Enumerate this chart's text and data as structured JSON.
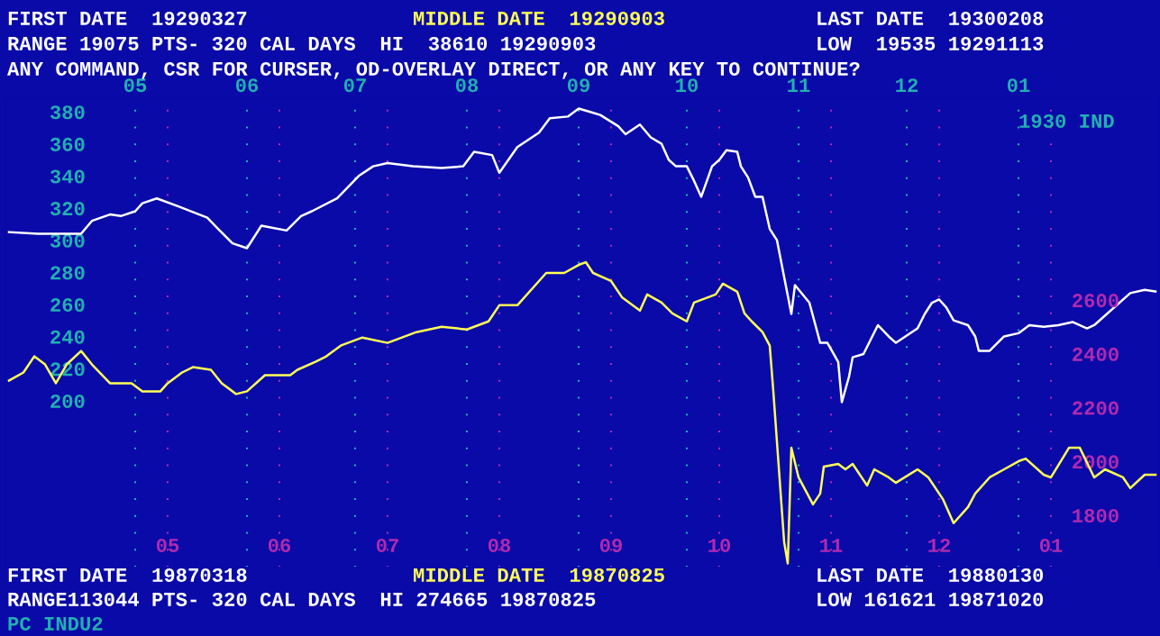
{
  "chart_data": {
    "type": "line",
    "annotations": [
      "FIRST DATE  19290327",
      "MIDDLE DATE  19290903",
      "LAST DATE  19300208",
      "RANGE 19075 PTS- 320 CAL DAYS  HI  38610 19290903",
      "LOW  19535 19291113",
      "ANY COMMAND, CSR FOR CURSER, OD-OVERLAY DIRECT, OR ANY KEY TO CONTINUE?",
      "1930 IND",
      "FIRST DATE  19870318",
      "MIDDLE DATE  19870825",
      "LAST DATE  19880130",
      "RANGE113044 PTS- 320 CAL DAYS  HI 274665 19870825",
      "LOW 161621 19871020",
      "PC INDU2"
    ],
    "xlim": [
      "1987-03-17",
      "1988-01-31"
    ],
    "xticks": [
      {
        "value": "1987-05-01",
        "label": "05"
      },
      {
        "value": "1987-06-01",
        "label": "06"
      },
      {
        "value": "1987-07-01",
        "label": "07"
      },
      {
        "value": "1987-08-01",
        "label": "08"
      },
      {
        "value": "1987-09-01",
        "label": "09"
      },
      {
        "value": "1987-10-01",
        "label": "10"
      },
      {
        "value": "1987-11-01",
        "label": "11"
      },
      {
        "value": "1987-12-01",
        "label": "12"
      },
      {
        "value": "1988-01-01",
        "label": "01"
      }
    ],
    "x2lim": [
      "1929-03-26",
      "1930-02-09"
    ],
    "x2ticks": [
      {
        "value": "1929-05-01",
        "label": "05"
      },
      {
        "value": "1929-06-01",
        "label": "06"
      },
      {
        "value": "1929-07-01",
        "label": "07"
      },
      {
        "value": "1929-08-01",
        "label": "08"
      },
      {
        "value": "1929-09-01",
        "label": "09"
      },
      {
        "value": "1929-10-01",
        "label": "10"
      },
      {
        "value": "1929-11-01",
        "label": "11"
      },
      {
        "value": "1929-12-01",
        "label": "12"
      },
      {
        "value": "1930-01-01",
        "label": "01"
      }
    ],
    "ylim": [
      96,
      389
    ],
    "yticks": [
      200,
      220,
      240,
      260,
      280,
      300,
      320,
      340,
      360,
      380
    ],
    "y2lim": [
      1605,
      3353
    ],
    "y2ticks": [
      1800,
      2000,
      2200,
      2400,
      2600
    ],
    "grid": "x",
    "marker": "none",
    "line_style": "solid",
    "series": [
      {
        "axis": "x2",
        "color": "#ffffff",
        "x": [
          "1929-03-27",
          "1929-04-04",
          "1929-04-11",
          "1929-04-16",
          "1929-04-19",
          "1929-04-24",
          "1929-04-27",
          "1929-05-01",
          "1929-05-03",
          "1929-05-07",
          "1929-05-13",
          "1929-05-21",
          "1929-05-24",
          "1929-05-28",
          "1929-06-01",
          "1929-06-05",
          "1929-06-12",
          "1929-06-16",
          "1929-06-19",
          "1929-06-26",
          "1929-07-02",
          "1929-07-06",
          "1929-07-10",
          "1929-07-17",
          "1929-07-25",
          "1929-07-31",
          "1929-08-03",
          "1929-08-08",
          "1929-08-10",
          "1929-08-15",
          "1929-08-21",
          "1929-08-24",
          "1929-08-29",
          "1929-09-01",
          "1929-09-04",
          "1929-09-07",
          "1929-09-12",
          "1929-09-14",
          "1929-09-18",
          "1929-09-21",
          "1929-09-24",
          "1929-09-26",
          "1929-09-28",
          "1929-10-01",
          "1929-10-03",
          "1929-10-05",
          "1929-10-08",
          "1929-10-10",
          "1929-10-12",
          "1929-10-15",
          "1929-10-16",
          "1929-10-18",
          "1929-10-20",
          "1929-10-22",
          "1929-10-24",
          "1929-10-26",
          "1929-10-28",
          "1929-10-30",
          "1929-10-31",
          "1929-11-04",
          "1929-11-07",
          "1929-11-09",
          "1929-11-12",
          "1929-11-13",
          "1929-11-15",
          "1929-11-16",
          "1929-11-19",
          "1929-11-21",
          "1929-11-23",
          "1929-11-26",
          "1929-11-28",
          "1929-12-04",
          "1929-12-06",
          "1929-12-08",
          "1929-12-10",
          "1929-12-12",
          "1929-12-14",
          "1929-12-18",
          "1929-12-20",
          "1929-12-21",
          "1929-12-24",
          "1929-12-28",
          "1930-01-01",
          "1930-01-04",
          "1930-01-08",
          "1930-01-12",
          "1930-01-16",
          "1930-01-20",
          "1930-01-22",
          "1930-02-01",
          "1930-02-05",
          "1930-02-08"
        ],
        "values": [
          305,
          304,
          304,
          304,
          312,
          316,
          315,
          318,
          323,
          326,
          321,
          314,
          307,
          298,
          295,
          309,
          306,
          315,
          318,
          326,
          340,
          346,
          348,
          346,
          345,
          346,
          355,
          353,
          342,
          358,
          367,
          376,
          377,
          382,
          380,
          378,
          371,
          366,
          372,
          364,
          360,
          350,
          346,
          346,
          337,
          327,
          346,
          350,
          356,
          355,
          346,
          339,
          327,
          327,
          307,
          300,
          277,
          254,
          272,
          261,
          236,
          236,
          224,
          199,
          215,
          227,
          229,
          238,
          247,
          240,
          236,
          245,
          254,
          261,
          263,
          258,
          250,
          247,
          240,
          231,
          231,
          240,
          242,
          247,
          246,
          247,
          249,
          245,
          247,
          267,
          269,
          268
        ]
      },
      {
        "axis": "y2",
        "color": "#ffff55",
        "x": [
          "1987-03-18",
          "1987-03-22",
          "1987-03-25",
          "1987-03-28",
          "1987-03-31",
          "1987-04-03",
          "1987-04-07",
          "1987-04-10",
          "1987-04-15",
          "1987-04-21",
          "1987-04-24",
          "1987-04-29",
          "1987-05-01",
          "1987-05-05",
          "1987-05-08",
          "1987-05-13",
          "1987-05-16",
          "1987-05-20",
          "1987-05-23",
          "1987-05-28",
          "1987-06-04",
          "1987-06-06",
          "1987-06-11",
          "1987-06-14",
          "1987-06-18",
          "1987-06-24",
          "1987-07-01",
          "1987-07-09",
          "1987-07-16",
          "1987-07-23",
          "1987-07-29",
          "1987-08-01",
          "1987-08-06",
          "1987-08-12",
          "1987-08-14",
          "1987-08-19",
          "1987-08-23",
          "1987-08-25",
          "1987-08-27",
          "1987-09-01",
          "1987-09-04",
          "1987-09-09",
          "1987-09-11",
          "1987-09-15",
          "1987-09-18",
          "1987-09-22",
          "1987-09-24",
          "1987-09-30",
          "1987-10-02",
          "1987-10-06",
          "1987-10-08",
          "1987-10-10",
          "1987-10-13",
          "1987-10-15",
          "1987-10-16",
          "1987-10-19",
          "1987-10-20",
          "1987-10-21",
          "1987-10-23",
          "1987-10-27",
          "1987-10-29",
          "1987-10-30",
          "1987-11-03",
          "1987-11-05",
          "1987-11-07",
          "1987-11-11",
          "1987-11-13",
          "1987-11-17",
          "1987-11-19",
          "1987-11-25",
          "1987-11-28",
          "1987-12-02",
          "1987-12-05",
          "1987-12-09",
          "1987-12-11",
          "1987-12-15",
          "1987-12-19",
          "1987-12-23",
          "1987-12-25",
          "1987-12-30",
          "1988-01-01",
          "1988-01-06",
          "1988-01-09",
          "1988-01-13",
          "1988-01-16",
          "1988-01-21",
          "1988-01-23",
          "1988-01-27",
          "1988-01-30"
        ],
        "values": [
          2300,
          2330,
          2390,
          2360,
          2290,
          2360,
          2410,
          2360,
          2290,
          2290,
          2260,
          2260,
          2290,
          2330,
          2350,
          2340,
          2290,
          2250,
          2260,
          2320,
          2320,
          2340,
          2370,
          2390,
          2430,
          2460,
          2440,
          2480,
          2500,
          2490,
          2520,
          2580,
          2580,
          2670,
          2700,
          2700,
          2730,
          2740,
          2700,
          2670,
          2610,
          2560,
          2620,
          2590,
          2550,
          2520,
          2590,
          2620,
          2660,
          2630,
          2550,
          2520,
          2480,
          2430,
          2260,
          1700,
          1620,
          2050,
          1940,
          1840,
          1880,
          1980,
          1990,
          1970,
          1990,
          1910,
          1970,
          1940,
          1920,
          1970,
          1940,
          1860,
          1770,
          1830,
          1880,
          1940,
          1970,
          2000,
          2010,
          1950,
          1940,
          2050,
          2050,
          1940,
          1970,
          1940,
          1900,
          1950,
          1950
        ]
      }
    ]
  }
}
